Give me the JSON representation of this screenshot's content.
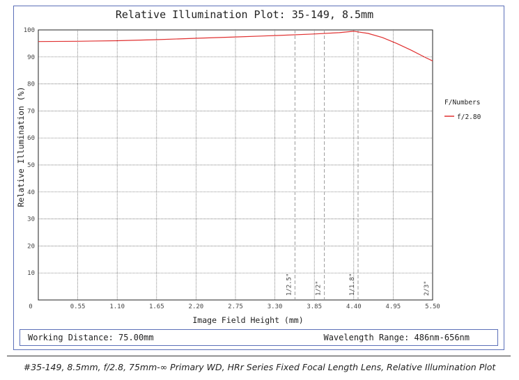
{
  "chart_data": {
    "type": "line",
    "title": "Relative Illumination Plot: 35-149, 8.5mm",
    "xlabel": "Image Field Height (mm)",
    "ylabel": "Relative Illumination (%)",
    "xlim": [
      0,
      5.5
    ],
    "ylim": [
      0,
      100
    ],
    "x_ticks": [
      "0.55",
      "1.10",
      "1.65",
      "2.20",
      "2.75",
      "3.30",
      "3.85",
      "4.40",
      "4.95",
      "5.50"
    ],
    "x_tick_values": [
      0.55,
      1.1,
      1.65,
      2.2,
      2.75,
      3.3,
      3.85,
      4.4,
      4.95,
      5.5
    ],
    "y_ticks": [
      "10",
      "20",
      "30",
      "40",
      "50",
      "60",
      "70",
      "80",
      "90",
      "100"
    ],
    "y_tick_values": [
      10,
      20,
      30,
      40,
      50,
      60,
      70,
      80,
      90,
      100
    ],
    "origin_label": "0",
    "grid": true,
    "legend_title": "F/Numbers",
    "legend_position": "right",
    "series": [
      {
        "name": "f/2.80",
        "color": "#e03030",
        "x": [
          0,
          0.55,
          1.1,
          1.65,
          2.2,
          2.75,
          3.3,
          3.85,
          4.2,
          4.4,
          4.6,
          4.8,
          5.0,
          5.2,
          5.4,
          5.5
        ],
        "y": [
          95.7,
          95.8,
          96.0,
          96.4,
          96.9,
          97.4,
          97.9,
          98.5,
          99.0,
          99.5,
          98.7,
          97.2,
          95.0,
          92.5,
          89.8,
          88.5
        ]
      }
    ],
    "sensor_markers": [
      {
        "label": "1/2.5\"",
        "x": 3.58
      },
      {
        "label": "1/2\"",
        "x": 3.99
      },
      {
        "label": "1/1.8\"",
        "x": 4.46
      },
      {
        "label": "2/3\"",
        "x": 5.5
      }
    ]
  },
  "footer": {
    "working_distance": "Working Distance: 75.00mm",
    "wavelength_range": "Wavelength Range: 486nm-656nm"
  },
  "caption": "#35-149, 8.5mm, f/2.8, 75mm-∞ Primary WD, HRr Series Fixed Focal Length Lens, Relative Illumination Plot"
}
